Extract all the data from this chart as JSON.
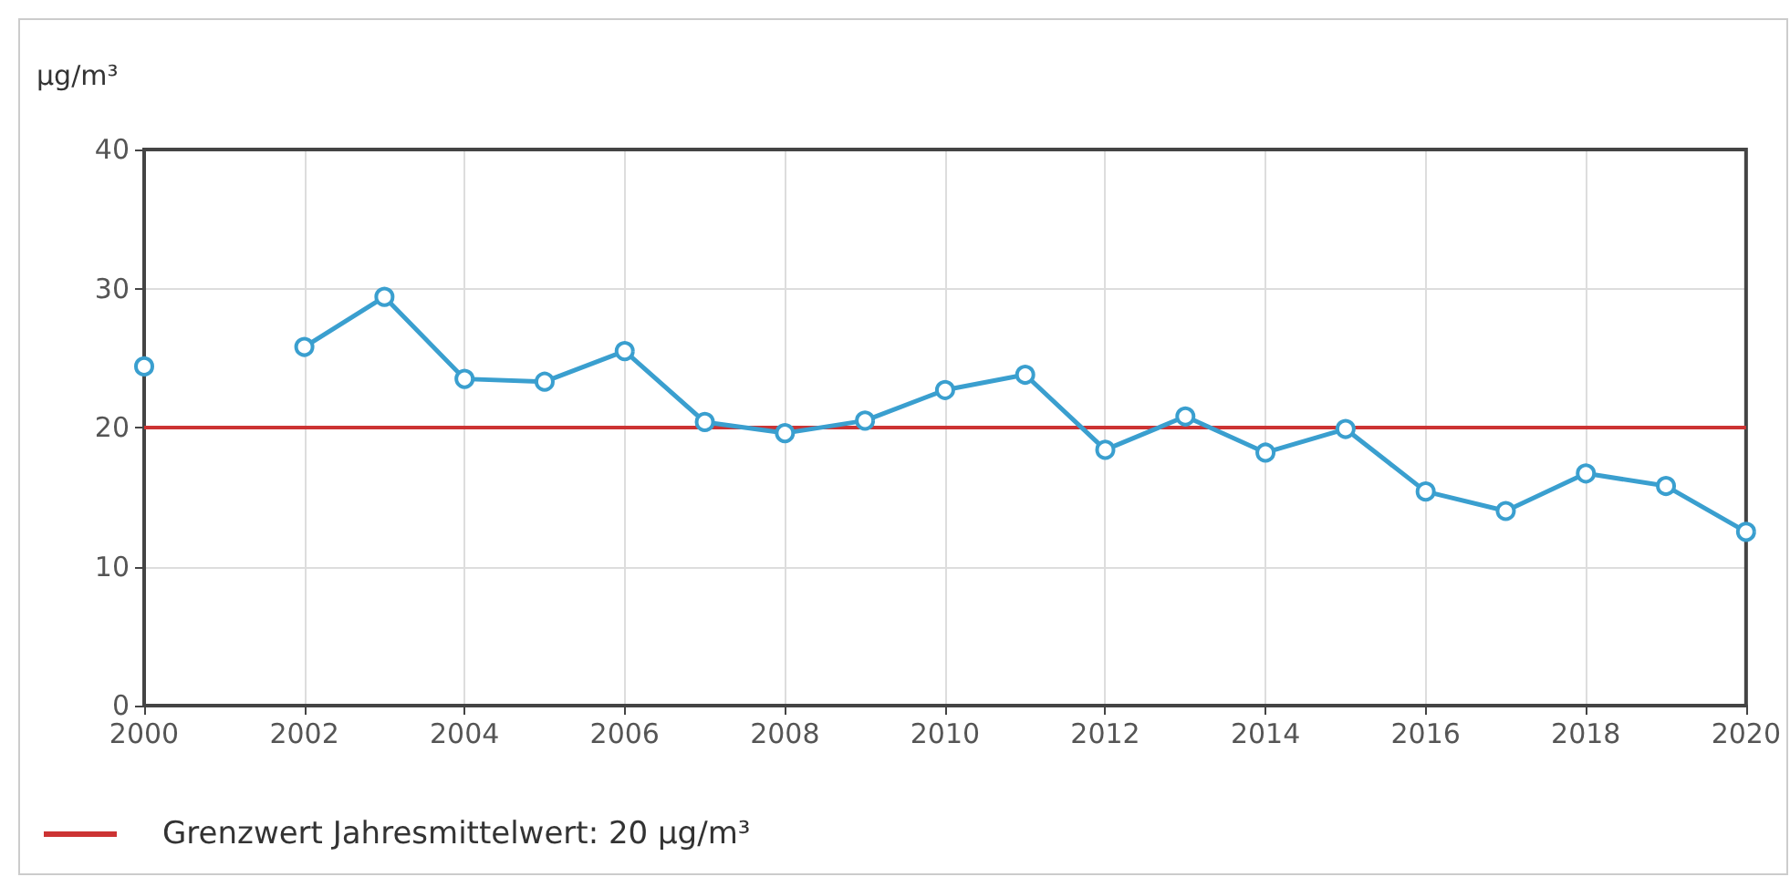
{
  "chart_data": {
    "type": "line",
    "ylabel": "µg/m³",
    "x": [
      2000,
      2001,
      2002,
      2003,
      2004,
      2005,
      2006,
      2007,
      2008,
      2009,
      2010,
      2011,
      2012,
      2013,
      2014,
      2015,
      2016,
      2017,
      2018,
      2019,
      2020
    ],
    "series": [
      {
        "color": "#3a9fcf",
        "values": [
          24.4,
          null,
          25.8,
          29.4,
          23.5,
          23.3,
          25.5,
          20.4,
          19.6,
          20.5,
          22.7,
          23.8,
          18.4,
          20.8,
          18.2,
          19.9,
          15.4,
          14.0,
          16.7,
          15.8,
          12.5
        ]
      }
    ],
    "xlim": [
      2000,
      2020
    ],
    "xticks": [
      2000,
      2002,
      2004,
      2006,
      2008,
      2010,
      2012,
      2014,
      2016,
      2018,
      2020
    ],
    "ylim": [
      0,
      40
    ],
    "yticks": [
      0,
      10,
      20,
      30,
      40
    ],
    "ref_lines": [
      {
        "axis": "y",
        "value": 20,
        "label": "Grenzwert Jahresmittelwert: 20 µg/m³",
        "color": "#cc3333"
      }
    ],
    "grid": true,
    "legend": "bottom",
    "marker": "circle",
    "line_style": "solid"
  }
}
